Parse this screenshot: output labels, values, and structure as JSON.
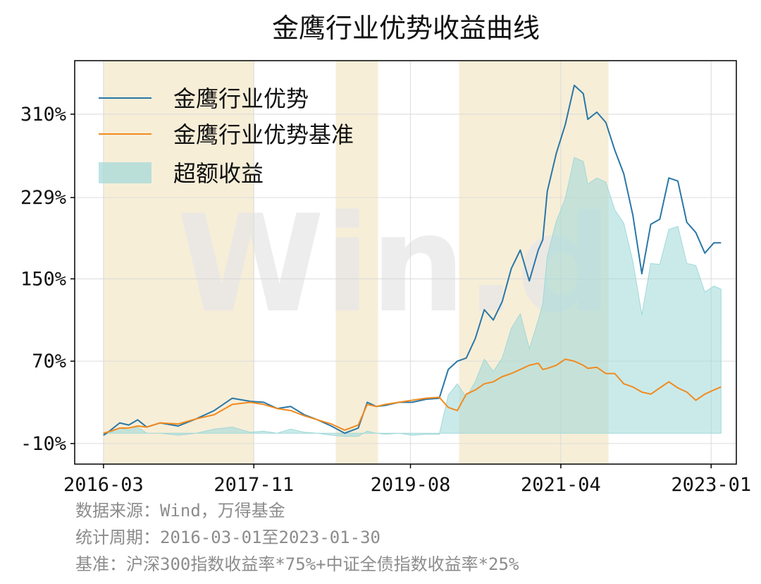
{
  "chart_data": {
    "type": "line",
    "title": "金鹰行业优势收益曲线",
    "watermark": "Win.d",
    "xlabel": "",
    "ylabel": "",
    "x_tick_labels": [
      "2016-03",
      "2017-11",
      "2019-08",
      "2021-04",
      "2023-01"
    ],
    "x_tick_positions": [
      2016.17,
      2017.84,
      2019.58,
      2021.25,
      2022.92
    ],
    "y_tick_labels": [
      "-10%",
      "70%",
      "150%",
      "229%",
      "310%"
    ],
    "y_tick_values": [
      -10,
      70,
      150,
      229,
      310
    ],
    "xlim": [
      2015.85,
      2023.2
    ],
    "ylim": [
      -30,
      362
    ],
    "grid": true,
    "legend_position": "top-left",
    "shaded_periods": [
      [
        2016.17,
        2017.84
      ],
      [
        2018.75,
        2019.22
      ],
      [
        2020.12,
        2021.78
      ]
    ],
    "series": [
      {
        "name": "金鹰行业优势",
        "color": "#2a77a6",
        "x": [
          2016.17,
          2016.25,
          2016.35,
          2016.45,
          2016.55,
          2016.65,
          2016.8,
          2017.0,
          2017.2,
          2017.4,
          2017.6,
          2017.8,
          2017.95,
          2018.1,
          2018.25,
          2018.4,
          2018.55,
          2018.7,
          2018.85,
          2019.0,
          2019.1,
          2019.2,
          2019.3,
          2019.45,
          2019.6,
          2019.75,
          2019.9,
          2020.0,
          2020.1,
          2020.2,
          2020.3,
          2020.4,
          2020.5,
          2020.6,
          2020.7,
          2020.8,
          2020.9,
          2021.0,
          2021.05,
          2021.1,
          2021.2,
          2021.3,
          2021.4,
          2021.5,
          2021.55,
          2021.65,
          2021.75,
          2021.85,
          2021.95,
          2022.05,
          2022.15,
          2022.25,
          2022.35,
          2022.45,
          2022.55,
          2022.65,
          2022.75,
          2022.85,
          2022.95,
          2023.03
        ],
        "values": [
          -2,
          3,
          10,
          8,
          13,
          6,
          10,
          7,
          14,
          22,
          34,
          31,
          30,
          24,
          26,
          18,
          13,
          7,
          0,
          5,
          30,
          26,
          27,
          30,
          30,
          33,
          34,
          62,
          70,
          73,
          92,
          120,
          110,
          128,
          160,
          178,
          148,
          178,
          188,
          235,
          272,
          300,
          338,
          330,
          305,
          312,
          302,
          275,
          252,
          212,
          155,
          203,
          208,
          248,
          245,
          205,
          195,
          175,
          185,
          185
        ]
      },
      {
        "name": "金鹰行业优势基准",
        "color": "#f28a1e",
        "x": [
          2016.17,
          2016.25,
          2016.35,
          2016.45,
          2016.55,
          2016.65,
          2016.8,
          2017.0,
          2017.2,
          2017.4,
          2017.6,
          2017.8,
          2017.95,
          2018.1,
          2018.25,
          2018.4,
          2018.55,
          2018.7,
          2018.85,
          2019.0,
          2019.1,
          2019.2,
          2019.3,
          2019.45,
          2019.6,
          2019.75,
          2019.9,
          2020.0,
          2020.1,
          2020.2,
          2020.3,
          2020.4,
          2020.5,
          2020.6,
          2020.7,
          2020.8,
          2020.9,
          2021.0,
          2021.05,
          2021.1,
          2021.2,
          2021.3,
          2021.4,
          2021.5,
          2021.55,
          2021.65,
          2021.75,
          2021.85,
          2021.95,
          2022.05,
          2022.15,
          2022.25,
          2022.35,
          2022.45,
          2022.55,
          2022.65,
          2022.75,
          2022.85,
          2022.95,
          2023.03
        ],
        "values": [
          0,
          2,
          5,
          5,
          7,
          6,
          10,
          9,
          14,
          18,
          28,
          30,
          28,
          24,
          22,
          17,
          13,
          9,
          3,
          8,
          28,
          26,
          28,
          30,
          32,
          34,
          35,
          25,
          22,
          38,
          42,
          48,
          50,
          55,
          58,
          62,
          66,
          68,
          62,
          63,
          66,
          72,
          70,
          66,
          63,
          64,
          58,
          58,
          48,
          45,
          40,
          38,
          44,
          50,
          44,
          40,
          32,
          38,
          42,
          45
        ]
      },
      {
        "name": "超额收益",
        "color": "#9fd8d8",
        "type": "area",
        "x": [
          2016.17,
          2016.25,
          2016.35,
          2016.45,
          2016.55,
          2016.65,
          2016.8,
          2017.0,
          2017.2,
          2017.4,
          2017.6,
          2017.8,
          2017.95,
          2018.1,
          2018.25,
          2018.4,
          2018.55,
          2018.7,
          2018.85,
          2019.0,
          2019.1,
          2019.2,
          2019.3,
          2019.45,
          2019.6,
          2019.75,
          2019.9,
          2020.0,
          2020.1,
          2020.2,
          2020.3,
          2020.4,
          2020.5,
          2020.6,
          2020.7,
          2020.8,
          2020.9,
          2021.0,
          2021.05,
          2021.1,
          2021.2,
          2021.3,
          2021.4,
          2021.5,
          2021.55,
          2021.65,
          2021.75,
          2021.85,
          2021.95,
          2022.05,
          2022.15,
          2022.25,
          2022.35,
          2022.45,
          2022.55,
          2022.65,
          2022.75,
          2022.85,
          2022.95,
          2023.03
        ],
        "values": [
          -2,
          1,
          5,
          3,
          6,
          0,
          0,
          -2,
          0,
          4,
          6,
          1,
          2,
          0,
          4,
          1,
          0,
          -2,
          -3,
          -3,
          2,
          0,
          -1,
          0,
          -2,
          -1,
          -1,
          37,
          48,
          35,
          50,
          72,
          60,
          73,
          102,
          116,
          82,
          110,
          126,
          172,
          206,
          228,
          268,
          264,
          242,
          248,
          244,
          217,
          204,
          167,
          115,
          165,
          164,
          198,
          201,
          165,
          163,
          137,
          143,
          140
        ]
      }
    ],
    "legend": [
      "金鹰行业优势",
      "金鹰行业优势基准",
      "超额收益"
    ]
  },
  "footer": {
    "source": "数据来源：Wind，万得基金",
    "period": "统计周期：2016-03-01至2023-01-30",
    "benchmark": "基准：沪深300指数收益率*75%+中证全债指数收益率*25%"
  },
  "colors": {
    "shade": "#f7eed8",
    "grid": "#d9d9d9",
    "fund": "#2a77a6",
    "benchmark": "#f28a1e",
    "excess_fill": "#9fd8d8"
  }
}
